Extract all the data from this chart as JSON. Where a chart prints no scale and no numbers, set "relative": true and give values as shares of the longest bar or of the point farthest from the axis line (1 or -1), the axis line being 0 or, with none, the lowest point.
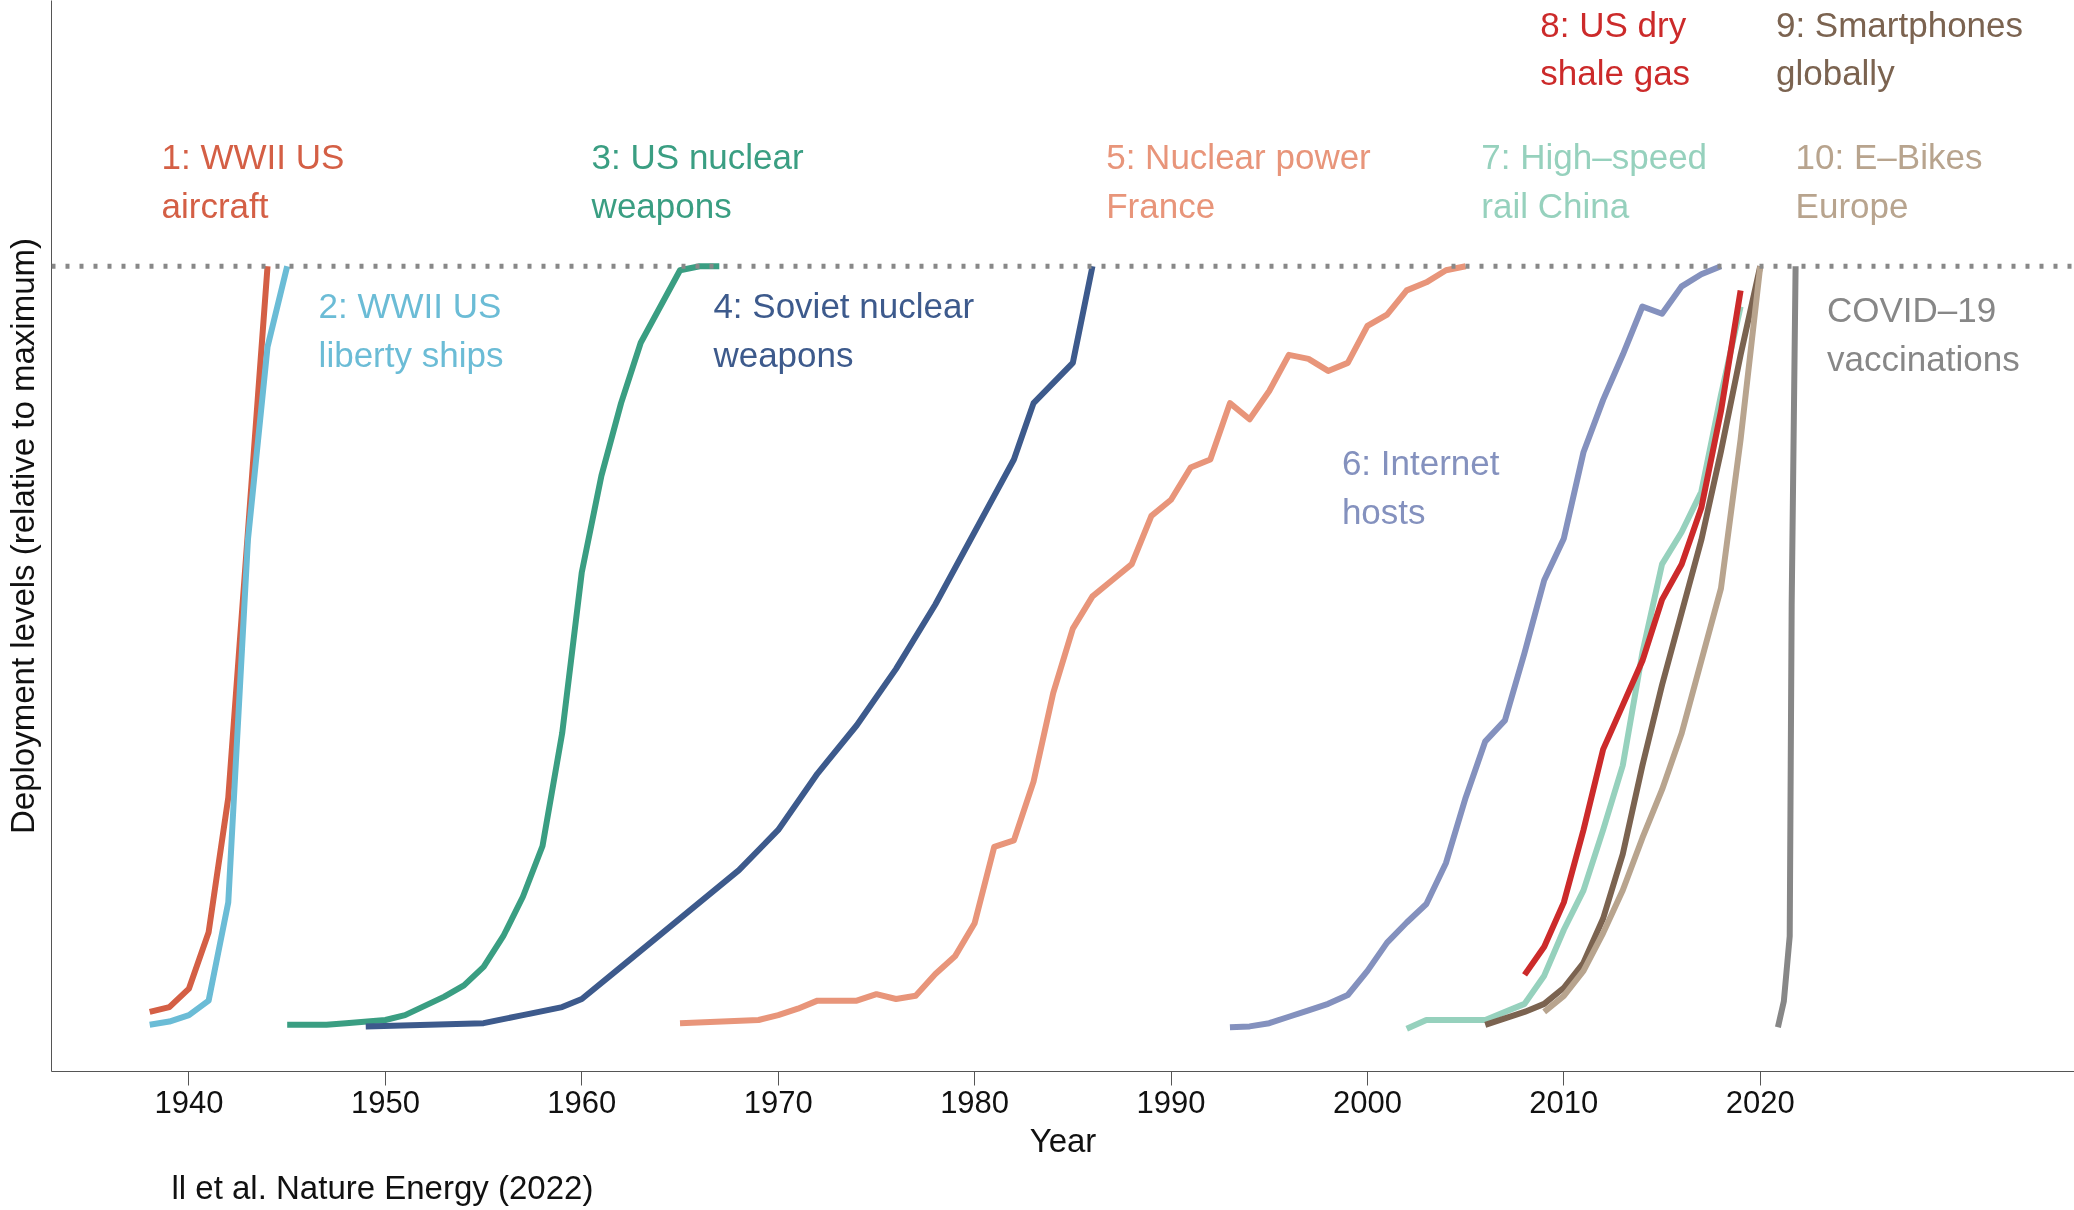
{
  "chart_data": {
    "type": "line",
    "relative": true,
    "xlabel": "Year",
    "ylabel": "Deployment levels (relative to maximum)",
    "xlim": [
      1933,
      2036
    ],
    "xticks": [
      1940,
      1950,
      1960,
      1970,
      1980,
      1990,
      2000,
      2010,
      2020
    ],
    "grid": false,
    "line_style": "solid",
    "ref_lines": [
      {
        "axis": "y",
        "value": 1,
        "color": "#888888",
        "line_style": "dotted"
      }
    ],
    "annotations": [
      "ll et al. Nature Energy (2022)"
    ],
    "series": [
      {
        "name": "1: WWII US\naircraft",
        "color": "#d45f45",
        "x": [
          1938,
          1939,
          1940,
          1941,
          1942,
          1943,
          1944
        ],
        "values": [
          0.074,
          0.08,
          0.103,
          0.173,
          0.34,
          0.67,
          1.0
        ]
      },
      {
        "name": "2: WWII US\nliberty ships",
        "color": "#6bbcd6",
        "x": [
          1938,
          1939,
          1940,
          1941,
          1942,
          1943,
          1944,
          1945
        ],
        "values": [
          0.058,
          0.062,
          0.07,
          0.088,
          0.21,
          0.66,
          0.9,
          1.0
        ]
      },
      {
        "name": "3: US nuclear\nweapons",
        "color": "#3a9e82",
        "x": [
          1945,
          1947,
          1948,
          1950,
          1951,
          1953,
          1954,
          1955,
          1956,
          1957,
          1958,
          1959,
          1960,
          1961,
          1962,
          1963,
          1964,
          1965,
          1966,
          1967
        ],
        "values": [
          0.058,
          0.058,
          0.06,
          0.064,
          0.07,
          0.093,
          0.107,
          0.13,
          0.168,
          0.217,
          0.28,
          0.42,
          0.62,
          0.74,
          0.83,
          0.905,
          0.95,
          0.995,
          1.0,
          1.0
        ]
      },
      {
        "name": "4: Soviet nuclear\nweapons",
        "color": "#3d5a8c",
        "x": [
          1949,
          1955,
          1957,
          1959,
          1960,
          1962,
          1964,
          1966,
          1968,
          1970,
          1972,
          1974,
          1976,
          1978,
          1980,
          1982,
          1983,
          1985,
          1986
        ],
        "values": [
          0.056,
          0.06,
          0.07,
          0.08,
          0.09,
          0.13,
          0.17,
          0.21,
          0.25,
          0.3,
          0.37,
          0.43,
          0.5,
          0.58,
          0.67,
          0.76,
          0.83,
          0.88,
          1.0
        ]
      },
      {
        "name": "5: Nuclear power\nFrance",
        "color": "#e8957a",
        "x": [
          1965,
          1969,
          1970,
          1971,
          1972,
          1974,
          1975,
          1976,
          1977,
          1978,
          1979,
          1980,
          1981,
          1982,
          1983,
          1984,
          1985,
          1986,
          1987,
          1988,
          1989,
          1990,
          1991,
          1992,
          1993,
          1994,
          1995,
          1996,
          1997,
          1998,
          1999,
          2000,
          2001,
          2002,
          2003,
          2004,
          2005
        ],
        "values": [
          0.06,
          0.064,
          0.07,
          0.078,
          0.088,
          0.088,
          0.096,
          0.09,
          0.094,
          0.121,
          0.143,
          0.184,
          0.279,
          0.287,
          0.36,
          0.47,
          0.55,
          0.59,
          0.61,
          0.63,
          0.69,
          0.71,
          0.75,
          0.76,
          0.83,
          0.81,
          0.845,
          0.89,
          0.885,
          0.87,
          0.88,
          0.926,
          0.94,
          0.97,
          0.98,
          0.995,
          1.0
        ]
      },
      {
        "name": "6: Internet\nhosts",
        "color": "#8491be",
        "x": [
          1993,
          1994,
          1995,
          1996,
          1997,
          1998,
          1999,
          2000,
          2001,
          2002,
          2003,
          2004,
          2005,
          2006,
          2007,
          2008,
          2009,
          2010,
          2011,
          2012,
          2013,
          2014,
          2015,
          2016,
          2017,
          2018
        ],
        "values": [
          0.055,
          0.056,
          0.06,
          0.068,
          0.076,
          0.084,
          0.095,
          0.125,
          0.16,
          0.185,
          0.208,
          0.259,
          0.34,
          0.41,
          0.436,
          0.52,
          0.61,
          0.662,
          0.769,
          0.834,
          0.89,
          0.95,
          0.941,
          0.975,
          0.99,
          1.0
        ]
      },
      {
        "name": "7: High–speed\nrail China",
        "color": "#96d1bd",
        "x": [
          2002,
          2003,
          2006,
          2008,
          2009,
          2010,
          2011,
          2012,
          2013,
          2014,
          2015,
          2016,
          2017,
          2018,
          2019
        ],
        "values": [
          0.053,
          0.064,
          0.064,
          0.084,
          0.119,
          0.176,
          0.225,
          0.3,
          0.38,
          0.52,
          0.63,
          0.67,
          0.72,
          0.84,
          0.95
        ]
      },
      {
        "name": "8: US dry\nshale gas",
        "color": "#cc2a2a",
        "x": [
          2008,
          2009,
          2010,
          2011,
          2012,
          2013,
          2014,
          2015,
          2016,
          2017,
          2018,
          2019
        ],
        "values": [
          0.12,
          0.155,
          0.21,
          0.3,
          0.4,
          0.455,
          0.51,
          0.586,
          0.63,
          0.7,
          0.82,
          0.97
        ]
      },
      {
        "name": "9: Smartphones\nglobally",
        "color": "#7b6350",
        "x": [
          2006,
          2008,
          2009,
          2010,
          2011,
          2012,
          2013,
          2014,
          2015,
          2016,
          2017,
          2018,
          2019,
          2020
        ],
        "values": [
          0.058,
          0.074,
          0.084,
          0.104,
          0.135,
          0.19,
          0.27,
          0.38,
          0.48,
          0.57,
          0.66,
          0.77,
          0.89,
          1.0
        ]
      },
      {
        "name": "10: E–Bikes\nEurope",
        "color": "#b8a48e",
        "x": [
          2009,
          2010,
          2011,
          2012,
          2013,
          2014,
          2015,
          2016,
          2017,
          2018,
          2019,
          2020
        ],
        "values": [
          0.074,
          0.094,
          0.125,
          0.172,
          0.225,
          0.29,
          0.35,
          0.42,
          0.51,
          0.6,
          0.785,
          1.0
        ]
      },
      {
        "name": "COVID–19\nvaccinations",
        "color": "#878787",
        "x": [
          2020.9,
          2021.2,
          2021.5,
          2021.6,
          2021.8
        ],
        "values": [
          0.055,
          0.087,
          0.168,
          0.58,
          1.0
        ]
      }
    ]
  }
}
